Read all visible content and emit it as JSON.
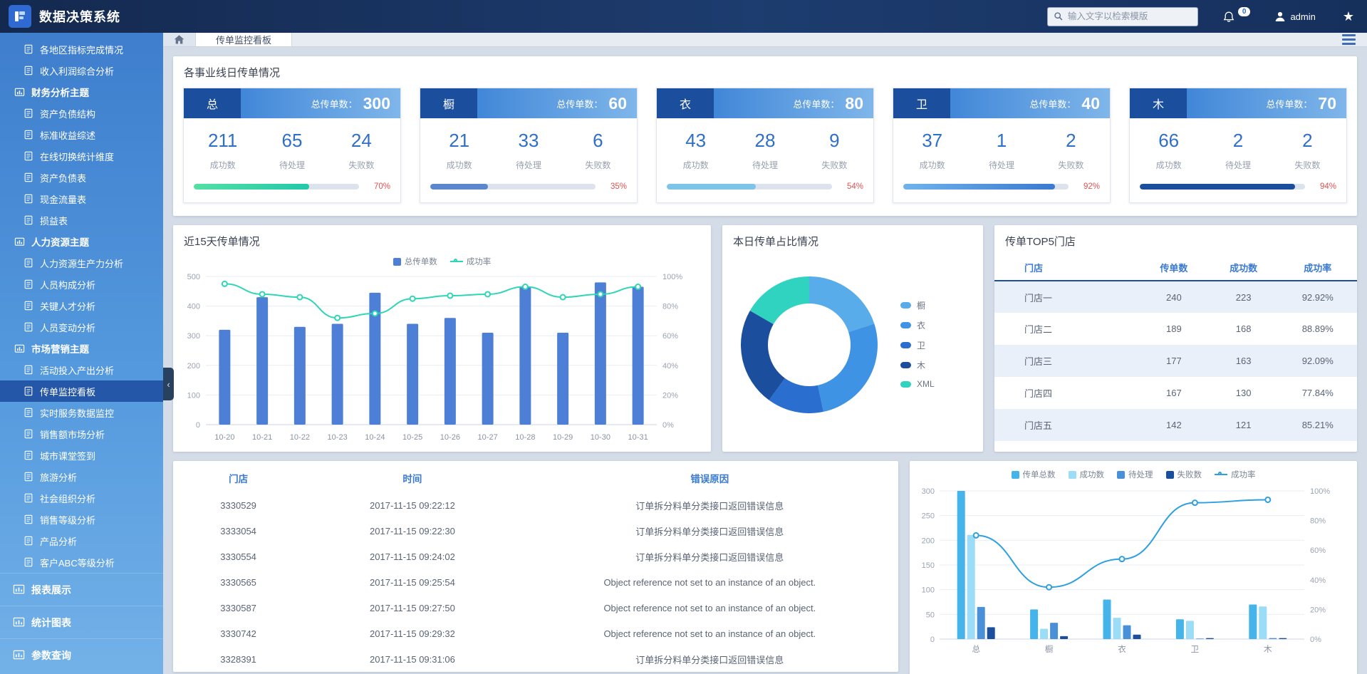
{
  "app": {
    "title": "数据决策系统",
    "search_placeholder": "输入文字以检索模版",
    "notification_count": "0",
    "username": "admin"
  },
  "tabs": {
    "active": "传单监控看板"
  },
  "sidebar": {
    "items": [
      {
        "label": "各地区指标完成情况",
        "type": "item"
      },
      {
        "label": "收入利润综合分析",
        "type": "item"
      },
      {
        "label": "财务分析主题",
        "type": "group"
      },
      {
        "label": "资产负债结构",
        "type": "item"
      },
      {
        "label": "标准收益综述",
        "type": "item"
      },
      {
        "label": "在线切换统计维度",
        "type": "item"
      },
      {
        "label": "资产负债表",
        "type": "item"
      },
      {
        "label": "现金流量表",
        "type": "item"
      },
      {
        "label": "损益表",
        "type": "item"
      },
      {
        "label": "人力资源主题",
        "type": "group"
      },
      {
        "label": "人力资源生产力分析",
        "type": "item"
      },
      {
        "label": "人员构成分析",
        "type": "item"
      },
      {
        "label": "关键人才分析",
        "type": "item"
      },
      {
        "label": "人员变动分析",
        "type": "item"
      },
      {
        "label": "市场营销主题",
        "type": "group"
      },
      {
        "label": "活动投入产出分析",
        "type": "item"
      },
      {
        "label": "传单监控看板",
        "type": "item",
        "active": true
      },
      {
        "label": "实时服务数据监控",
        "type": "item"
      },
      {
        "label": "销售额市场分析",
        "type": "item"
      },
      {
        "label": "城市课堂签到",
        "type": "item"
      },
      {
        "label": "旅游分析",
        "type": "item"
      },
      {
        "label": "社会组织分析",
        "type": "item"
      },
      {
        "label": "销售等级分析",
        "type": "item"
      },
      {
        "label": "产品分析",
        "type": "item"
      },
      {
        "label": "客户ABC等级分析",
        "type": "item"
      },
      {
        "label": "报表展示",
        "type": "section"
      },
      {
        "label": "统计图表",
        "type": "section"
      },
      {
        "label": "参数查询",
        "type": "section"
      }
    ]
  },
  "section_title": "各事业线日传单情况",
  "cards": {
    "total_label": "总传单数：",
    "success_label": "成功数",
    "pending_label": "待处理",
    "fail_label": "失败数",
    "items": [
      {
        "tag": "总",
        "total": "300",
        "success": "211",
        "pending": "65",
        "fail": "24",
        "rate": "70%",
        "pct": 70,
        "bar_color": "linear-gradient(90deg,#53e0a5,#22c8a9)"
      },
      {
        "tag": "橱",
        "total": "60",
        "success": "21",
        "pending": "33",
        "fail": "6",
        "rate": "35%",
        "pct": 35,
        "bar_color": "#5b87cf"
      },
      {
        "tag": "衣",
        "total": "80",
        "success": "43",
        "pending": "28",
        "fail": "9",
        "rate": "54%",
        "pct": 54,
        "bar_color": "#7cc5e8"
      },
      {
        "tag": "卫",
        "total": "40",
        "success": "37",
        "pending": "1",
        "fail": "2",
        "rate": "92%",
        "pct": 92,
        "bar_color": "linear-gradient(90deg,#6fb3ec,#3a7ad0)"
      },
      {
        "tag": "木",
        "total": "70",
        "success": "66",
        "pending": "2",
        "fail": "2",
        "rate": "94%",
        "pct": 94,
        "bar_color": "#1b4f9e"
      }
    ]
  },
  "chart_data": {
    "trend": {
      "type": "bar",
      "title": "近15天传单情况",
      "categories": [
        "10-20",
        "10-21",
        "10-22",
        "10-23",
        "10-24",
        "10-25",
        "10-26",
        "10-27",
        "10-28",
        "10-29",
        "10-30",
        "10-31"
      ],
      "bar_series": {
        "name": "总传单数",
        "color": "#4d7fd6",
        "values": [
          320,
          430,
          330,
          340,
          445,
          340,
          360,
          310,
          465,
          310,
          480,
          465
        ]
      },
      "line_series": {
        "name": "成功率",
        "color": "#2fd6b5",
        "values": [
          95,
          88,
          86,
          72,
          75,
          85,
          87,
          88,
          93,
          86,
          88,
          93
        ]
      },
      "ylim": [
        0,
        500
      ],
      "yticks": [
        "0",
        "100",
        "200",
        "300",
        "400",
        "500"
      ],
      "y2ticks": [
        "0%",
        "20%",
        "40%",
        "60%",
        "80%",
        "100%"
      ]
    },
    "donut": {
      "type": "pie",
      "title": "本日传单占比情况",
      "slices": [
        {
          "label": "橱",
          "value": 60,
          "color": "#58ace9"
        },
        {
          "label": "衣",
          "value": 80,
          "color": "#3f93e4"
        },
        {
          "label": "卫",
          "value": 40,
          "color": "#2a6fd0"
        },
        {
          "label": "木",
          "value": 70,
          "color": "#1b4f9e"
        },
        {
          "label": "XML",
          "value": 50,
          "color": "#30d2c0"
        }
      ]
    },
    "by_line": {
      "type": "bar",
      "categories": [
        "总",
        "橱",
        "衣",
        "卫",
        "木"
      ],
      "series": [
        {
          "name": "传单总数",
          "color": "#45b4ea",
          "values": [
            300,
            60,
            80,
            40,
            70
          ]
        },
        {
          "name": "成功数",
          "color": "#9bdcf6",
          "values": [
            211,
            21,
            43,
            37,
            66
          ]
        },
        {
          "name": "待处理",
          "color": "#4a90d9",
          "values": [
            65,
            33,
            28,
            1,
            2
          ]
        },
        {
          "name": "失败数",
          "color": "#1b4f9e",
          "values": [
            24,
            6,
            9,
            2,
            2
          ]
        }
      ],
      "line": {
        "name": "成功率",
        "color": "#2e9fe0",
        "values": [
          70,
          35,
          54,
          92,
          94
        ]
      },
      "ylim": [
        0,
        300
      ],
      "yticks": [
        "0",
        "50",
        "100",
        "150",
        "200",
        "250",
        "300"
      ],
      "y2ticks": [
        "0%",
        "20%",
        "40%",
        "60%",
        "80%",
        "100%"
      ]
    }
  },
  "top5": {
    "title": "传单TOP5门店",
    "headers": [
      "门店",
      "传单数",
      "成功数",
      "成功率"
    ],
    "rows": [
      [
        "门店一",
        "240",
        "223",
        "92.92%"
      ],
      [
        "门店二",
        "189",
        "168",
        "88.89%"
      ],
      [
        "门店三",
        "177",
        "163",
        "92.09%"
      ],
      [
        "门店四",
        "167",
        "130",
        "77.84%"
      ],
      [
        "门店五",
        "142",
        "121",
        "85.21%"
      ]
    ]
  },
  "errors": {
    "headers": [
      "门店",
      "时间",
      "错误原因"
    ],
    "rows": [
      [
        "3330529",
        "2017-11-15 09:22:12",
        "订单拆分料单分类接口返回错误信息"
      ],
      [
        "3333054",
        "2017-11-15 09:22:30",
        "订单拆分料单分类接口返回错误信息"
      ],
      [
        "3330554",
        "2017-11-15 09:24:02",
        "订单拆分料单分类接口返回错误信息"
      ],
      [
        "3330565",
        "2017-11-15 09:25:54",
        "Object reference not set to an instance of an object."
      ],
      [
        "3330587",
        "2017-11-15 09:27:50",
        "Object reference not set to an instance of an object."
      ],
      [
        "3330742",
        "2017-11-15 09:29:32",
        "Object reference not set to an instance of an object."
      ],
      [
        "3328391",
        "2017-11-15 09:31:06",
        "订单拆分料单分类接口返回错误信息"
      ]
    ]
  },
  "colors": {
    "accent": "#2e6ad1",
    "navy": "#1b4f9e",
    "teal": "#2fd6b5",
    "danger": "#e05252"
  }
}
